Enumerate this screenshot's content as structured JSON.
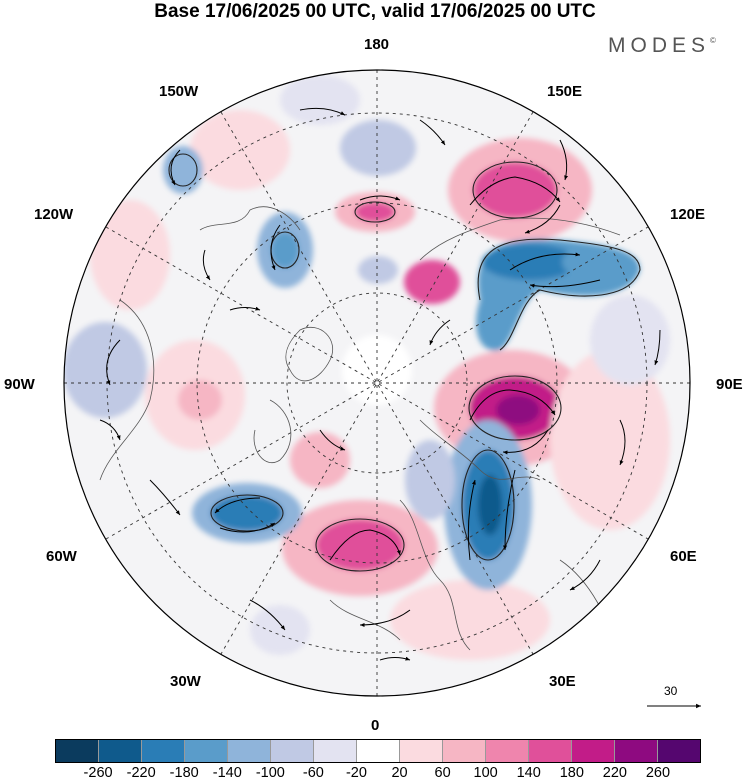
{
  "title": "Base 17/06/2025 00 UTC, valid 17/06/2025 00 UTC",
  "logo": {
    "text": "MODES",
    "mark": "©"
  },
  "longitude_labels": {
    "n180": "180",
    "e150": "150E",
    "e120": "120E",
    "e90": "90E",
    "e60": "60E",
    "e30": "30E",
    "s0": "0",
    "w30": "30W",
    "w60": "60W",
    "w90": "90W",
    "w120": "120W",
    "w150": "150W"
  },
  "vector_scale": {
    "label": "30"
  },
  "colorbar": {
    "colors": [
      "#0b3b5e",
      "#0f5a8c",
      "#2a7db6",
      "#5a9cca",
      "#8fb4da",
      "#c0c9e4",
      "#e3e3f1",
      "#ffffff",
      "#fbdbe0",
      "#f6b6c4",
      "#ef85ad",
      "#e0509a",
      "#c21c88",
      "#8e0a80",
      "#55066f"
    ],
    "ticks": [
      "-260",
      "-220",
      "-180",
      "-140",
      "-100",
      "-60",
      "-20",
      "20",
      "60",
      "100",
      "140",
      "180",
      "220",
      "260"
    ]
  }
}
